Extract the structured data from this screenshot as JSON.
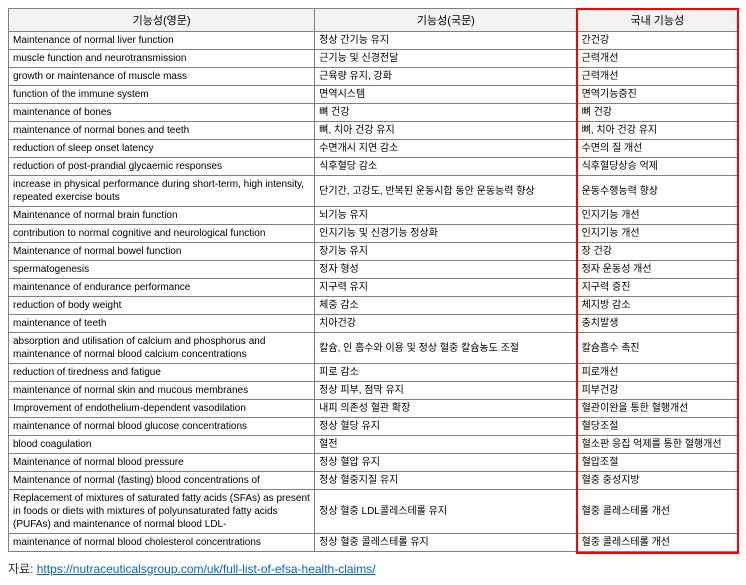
{
  "headers": {
    "col1": "기능성(영문)",
    "col2": "기능성(국문)",
    "col3": "국내 기능성"
  },
  "rows": [
    {
      "c1": "Maintenance of normal liver function",
      "c2": "정상 간기능 유지",
      "c3": "간건강"
    },
    {
      "c1": "muscle function and neurotransmission",
      "c2": "근기능 및 신경전달",
      "c3": "근력개선"
    },
    {
      "c1": "growth or maintenance of muscle mass",
      "c2": "근육량 유지, 강화",
      "c3": "근력개선"
    },
    {
      "c1": "function of the immune system",
      "c2": "면역시스템",
      "c3": "면역기능증진"
    },
    {
      "c1": "maintenance of bones",
      "c2": "뼈 건강",
      "c3": "뼈 건강"
    },
    {
      "c1": "maintenance of normal bones and teeth",
      "c2": "뼈, 치아 건강 유지",
      "c3": "뼈, 치아 건강 유지"
    },
    {
      "c1": "reduction of sleep onset latency",
      "c2": "수면개시 지연 감소",
      "c3": "수면의 질 개선"
    },
    {
      "c1": "reduction of post-prandial glycaemic responses",
      "c2": "식후혈당 감소",
      "c3": "식후혈당상승 억제"
    },
    {
      "c1": "increase in physical performance during short-term, high intensity, repeated exercise bouts",
      "c2": "단기간, 고강도, 반복된 운동시합 동안 운동능력 향상",
      "c3": "운동수행능력 향상"
    },
    {
      "c1": "Maintenance of normal brain function",
      "c2": "뇌기능 유지",
      "c3": "인지기능 개선"
    },
    {
      "c1": "contribution to normal cognitive and neurological function",
      "c2": "인지기능 및 신경기능 정상화",
      "c3": "인지기능 개선"
    },
    {
      "c1": "Maintenance of normal bowel function",
      "c2": "장기능 유지",
      "c3": "장 건강"
    },
    {
      "c1": "spermatogenesis",
      "c2": "정자 형성",
      "c3": "정자 운동성 개선"
    },
    {
      "c1": "maintenance of endurance performance",
      "c2": "지구력 유지",
      "c3": "지구력 증진"
    },
    {
      "c1": "reduction of body weight",
      "c2": "체중 감소",
      "c3": "체지방 감소"
    },
    {
      "c1": "maintenance of teeth",
      "c2": "치아건강",
      "c3": "충치발생"
    },
    {
      "c1": "absorption and utilisation of calcium and phosphorus and maintenance of normal blood calcium concentrations",
      "c2": "칼슘, 인 흡수와 이용 및 정상 혈중 칼슘농도 조절",
      "c3": "칼슘흡수 촉진"
    },
    {
      "c1": "reduction of tiredness and fatigue",
      "c2": "피로 감소",
      "c3": "피로개선"
    },
    {
      "c1": "maintenance of normal skin and mucous membranes",
      "c2": "정상 피부, 점막 유지",
      "c3": "피부건강"
    },
    {
      "c1": "Improvement of endothelium-dependent vasodilation",
      "c2": "내피 의존성 혈관 확장",
      "c3": "혈관이완을 통한 혈행개선"
    },
    {
      "c1": "maintenance of normal blood glucose concentrations",
      "c2": "정상 혈당 유지",
      "c3": "혈당조절"
    },
    {
      "c1": "blood coagulation",
      "c2": "혈전",
      "c3": "혈소판 응집 억제를 통한 혈행개선"
    },
    {
      "c1": "Maintenance of normal blood pressure",
      "c2": "정상 혈압 유지",
      "c3": "혈압조절"
    },
    {
      "c1": "Maintenance of normal (fasting) blood concentrations of",
      "c2": "정상 혈중지질 유지",
      "c3": "혈중 중성지방"
    },
    {
      "c1": "Replacement of mixtures of saturated fatty acids (SFAs) as present in foods or diets with mixtures of polyunsaturated fatty acids (PUFAs) and maintenance of normal blood LDL-",
      "c2": "정상 혈중 LDL콜레스테롤 유지",
      "c3": "혈중 콜레스테롤 개선"
    },
    {
      "c1": "maintenance of normal blood cholesterol concentrations",
      "c2": "정상 혈중 콜레스테롤 유지",
      "c3": "혈중 콜레스테롤 개선"
    }
  ],
  "source": {
    "label": "자료: ",
    "url": "https://nutraceuticalsgroup.com/uk/full-list-of-efsa-health-claims/"
  },
  "styling": {
    "header_bg": "#f2f2f2",
    "border_color": "#808080",
    "highlight_border": "#ff0000",
    "link_color": "#0066cc",
    "font_size_table": 10,
    "font_size_header": 11,
    "font_size_source": 12,
    "col_widths": [
      "42%",
      "36%",
      "22%"
    ]
  }
}
